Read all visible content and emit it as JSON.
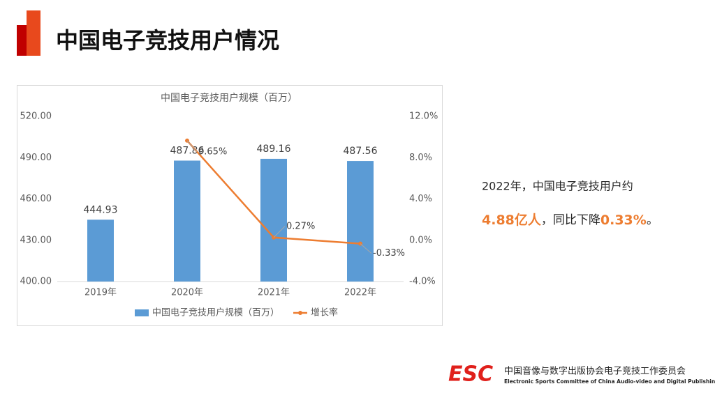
{
  "header": {
    "title": "中国电子竞技用户情况"
  },
  "chart_data": {
    "type": "bar_line",
    "title": "中国电子竞技用户规模（百万）",
    "categories": [
      "2019年",
      "2020年",
      "2021年",
      "2022年"
    ],
    "series": [
      {
        "name": "中国电子竞技用户规模（百万）",
        "type": "bar",
        "color": "#5b9bd5",
        "values": [
          444.93,
          487.86,
          489.16,
          487.56
        ]
      },
      {
        "name": "增长率",
        "type": "line",
        "color": "#ed7d31",
        "axis": "y2",
        "values": [
          null,
          9.65,
          0.27,
          -0.33
        ],
        "value_labels": [
          null,
          "9.65%",
          "0.27%",
          "-0.33%"
        ]
      }
    ],
    "ylim": [
      400,
      520
    ],
    "yticks": [
      {
        "value": 400,
        "label": "400.00"
      },
      {
        "value": 430,
        "label": "430.00"
      },
      {
        "value": 460,
        "label": "460.00"
      },
      {
        "value": 490,
        "label": "490.00"
      },
      {
        "value": 520,
        "label": "520.00"
      }
    ],
    "y2lim": [
      -4,
      12
    ],
    "y2ticks": [
      {
        "value": -4,
        "label": "-4.0%"
      },
      {
        "value": 0,
        "label": "0.0%"
      },
      {
        "value": 4,
        "label": "4.0%"
      },
      {
        "value": 8,
        "label": "8.0%"
      },
      {
        "value": 12,
        "label": "12.0%"
      }
    ],
    "grid": false,
    "legend": "bottom"
  },
  "summary": {
    "line1": "2022年，中国电子竞技用户约",
    "highlight1": "4.88亿人",
    "middle": "，同比下降",
    "highlight2": "0.33%",
    "end": "。"
  },
  "footer": {
    "logo": "ESC",
    "org_cn": "中国音像与数字出版协会电子竞技工作委员会",
    "org_en": "Electronic Sports Committee of China Audio-video and Digital Publishing Association"
  }
}
